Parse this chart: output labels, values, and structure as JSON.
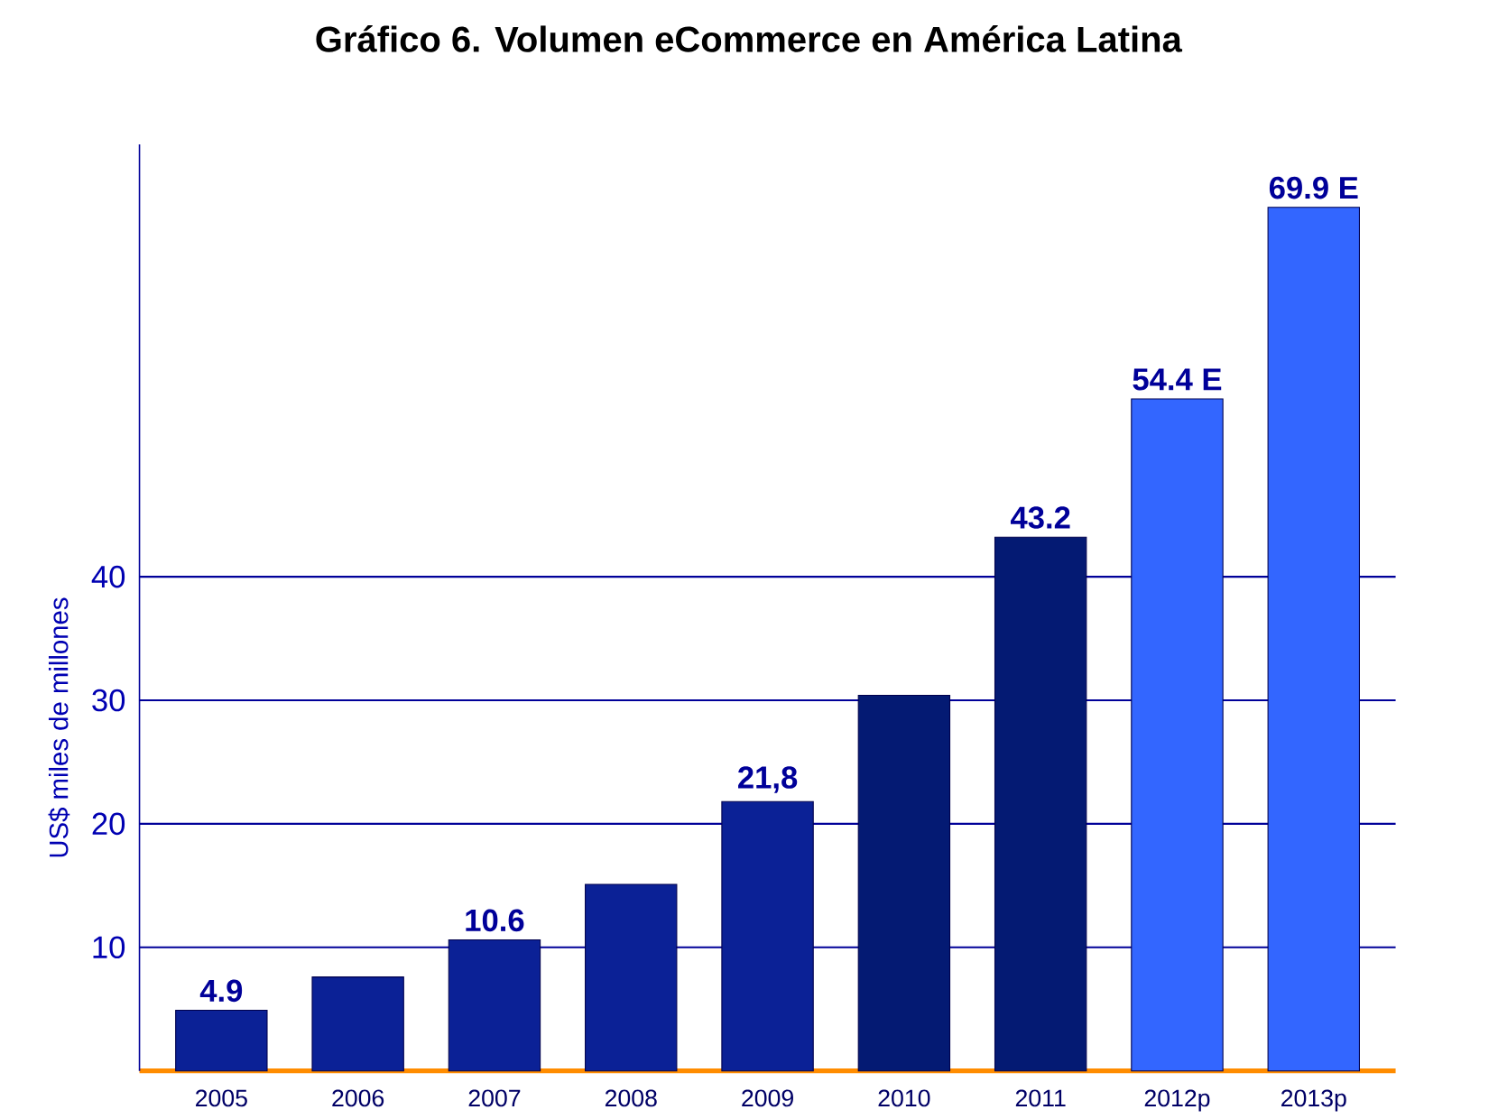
{
  "chart_data": {
    "type": "bar",
    "title": "Gráfico 6. Volumen eCommerce en América Latina",
    "ylabel": "US$  miles de millones",
    "categories": [
      "2005",
      "2006",
      "2007",
      "2008",
      "2009",
      "2010",
      "2011",
      "2012p",
      "2013p"
    ],
    "values": [
      4.9,
      7.6,
      10.6,
      15.1,
      21.8,
      30.4,
      43.2,
      54.4,
      69.9
    ],
    "value_labels": [
      "4.9",
      null,
      "10.6",
      null,
      "21,8",
      null,
      "43.2",
      "54.4 E",
      "69.9 E"
    ],
    "colors": [
      "#0b2196",
      "#0b2196",
      "#0b2196",
      "#0b2196",
      "#0b2196",
      "#041a73",
      "#041a73",
      "#3366ff",
      "#3366ff"
    ],
    "ylim": [
      0,
      75
    ],
    "yticks": [
      10,
      20,
      30,
      40
    ],
    "grid": "y"
  }
}
